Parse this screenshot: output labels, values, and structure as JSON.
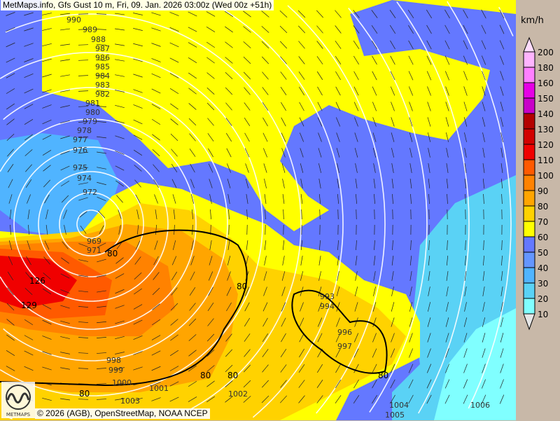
{
  "title": "MetMaps.info, Gfs Gust 10 m, Fri, 09. Jan. 2026 03:00z (Wed 00z +51h)",
  "copyright": "© 2026 (AGB), OpenStreetMap, NOAA NCEP",
  "logo_text": "METMAPS",
  "legend": {
    "unit": "km/h",
    "levels": [
      {
        "value": "200",
        "color": "#ffb4ff"
      },
      {
        "value": "180",
        "color": "#ff80ff"
      },
      {
        "value": "160",
        "color": "#e600e6"
      },
      {
        "value": "150",
        "color": "#c800c8"
      },
      {
        "value": "140",
        "color": "#b40000"
      },
      {
        "value": "130",
        "color": "#d20000"
      },
      {
        "value": "120",
        "color": "#f00000"
      },
      {
        "value": "110",
        "color": "#ff5a00"
      },
      {
        "value": "100",
        "color": "#ff8200"
      },
      {
        "value": "90",
        "color": "#ffa500"
      },
      {
        "value": "80",
        "color": "#ffd200"
      },
      {
        "value": "70",
        "color": "#ffff00"
      },
      {
        "value": "60",
        "color": "#6478ff"
      },
      {
        "value": "50",
        "color": "#6496ff"
      },
      {
        "value": "40",
        "color": "#50b4ff"
      },
      {
        "value": "30",
        "color": "#5ad2f5"
      },
      {
        "value": "20",
        "color": "#80ffff"
      },
      {
        "value": "10",
        "color": ""
      }
    ],
    "top_arrow_color": "#ffdcff",
    "bottom_arrow_color": "#e6e6e6"
  },
  "map": {
    "isobar_labels": [
      "990",
      "989",
      "988",
      "987",
      "986",
      "985",
      "984",
      "983",
      "982",
      "981",
      "980",
      "979",
      "978",
      "977",
      "976",
      "975",
      "974",
      "972",
      "969",
      "971",
      "998",
      "999",
      "1000",
      "1001",
      "1002",
      "1003",
      "1004",
      "1005",
      "1006",
      "993",
      "994",
      "996",
      "997"
    ],
    "gust_labels": [
      "126",
      "129",
      "80",
      "80",
      "80",
      "80",
      "80",
      "80"
    ]
  }
}
